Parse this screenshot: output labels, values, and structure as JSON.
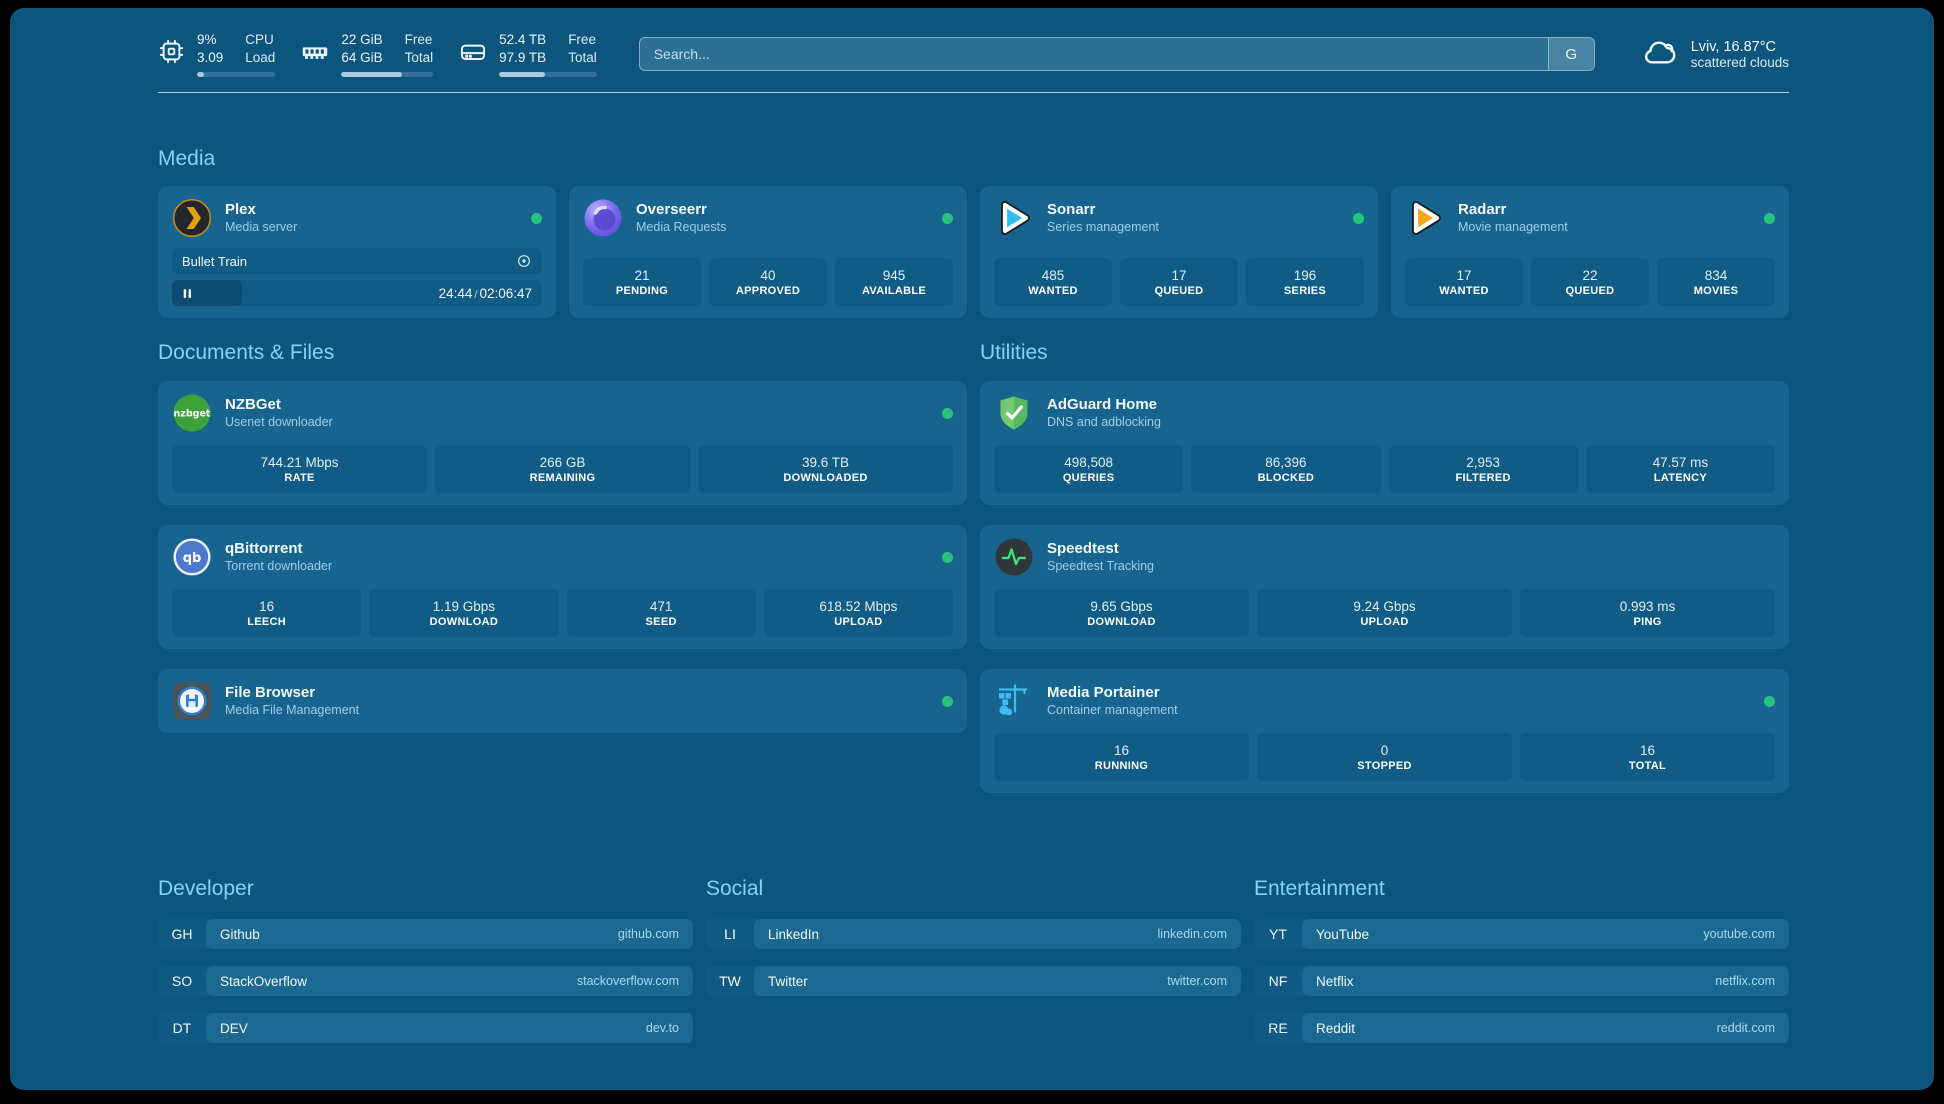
{
  "theme": {
    "background": "#0C567E",
    "card_background": "#17658E",
    "tile_background": "#115C84",
    "section_title_color": "#82D3F5",
    "status_green": "#27C280"
  },
  "header": {
    "system_stats": [
      {
        "icon": "cpu-icon",
        "values": [
          "9%",
          "3.09"
        ],
        "labels": [
          "CPU",
          "Load"
        ],
        "progress_percent": 9
      },
      {
        "icon": "memory-icon",
        "values": [
          "22 GiB",
          "64 GiB"
        ],
        "labels": [
          "Free",
          "Total"
        ],
        "progress_percent": 66
      },
      {
        "icon": "storage-icon",
        "values": [
          "52.4 TB",
          "97.9 TB"
        ],
        "labels": [
          "Free",
          "Total"
        ],
        "progress_percent": 47
      }
    ],
    "search": {
      "placeholder": "Search...",
      "engine_button_label": "G"
    },
    "weather": {
      "icon": "cloud-icon",
      "location_temperature": "Lviv, 16.87°C",
      "description": "scattered clouds"
    }
  },
  "media": {
    "section_title": "Media",
    "plex": {
      "name": "Plex",
      "description": "Media server",
      "icon": "plex-icon",
      "online": true,
      "now_playing": {
        "title": "Bullet Train",
        "elapsed": "24:44",
        "separator": "/",
        "duration": "02:06:47",
        "progress_percent": 19
      }
    },
    "overseerr": {
      "name": "Overseerr",
      "description": "Media Requests",
      "icon": "overseerr-icon",
      "online": true,
      "stats": [
        {
          "value": "21",
          "label": "PENDING"
        },
        {
          "value": "40",
          "label": "APPROVED"
        },
        {
          "value": "945",
          "label": "AVAILABLE"
        }
      ]
    },
    "sonarr": {
      "name": "Sonarr",
      "description": "Series management",
      "icon": "sonarr-icon",
      "online": true,
      "stats": [
        {
          "value": "485",
          "label": "WANTED"
        },
        {
          "value": "17",
          "label": "QUEUED"
        },
        {
          "value": "196",
          "label": "SERIES"
        }
      ]
    },
    "radarr": {
      "name": "Radarr",
      "description": "Movie management",
      "icon": "radarr-icon",
      "online": true,
      "stats": [
        {
          "value": "17",
          "label": "WANTED"
        },
        {
          "value": "22",
          "label": "QUEUED"
        },
        {
          "value": "834",
          "label": "MOVIES"
        }
      ]
    }
  },
  "documents_files": {
    "section_title": "Documents & Files",
    "nzbget": {
      "name": "NZBGet",
      "description": "Usenet downloader",
      "icon": "nzbget-icon",
      "online": true,
      "stats": [
        {
          "value": "744.21 Mbps",
          "label": "RATE"
        },
        {
          "value": "266 GB",
          "label": "REMAINING"
        },
        {
          "value": "39.6 TB",
          "label": "DOWNLOADED"
        }
      ]
    },
    "qbittorrent": {
      "name": "qBittorrent",
      "description": "Torrent downloader",
      "icon": "qbittorrent-icon",
      "online": true,
      "stats": [
        {
          "value": "16",
          "label": "LEECH"
        },
        {
          "value": "1.19 Gbps",
          "label": "DOWNLOAD"
        },
        {
          "value": "471",
          "label": "SEED"
        },
        {
          "value": "618.52 Mbps",
          "label": "UPLOAD"
        }
      ]
    },
    "file_browser": {
      "name": "File Browser",
      "description": "Media File Management",
      "icon": "filebrowser-icon",
      "online": true
    }
  },
  "utilities": {
    "section_title": "Utilities",
    "adguard_home": {
      "name": "AdGuard Home",
      "description": "DNS and adblocking",
      "icon": "adguard-icon",
      "stats": [
        {
          "value": "498,508",
          "label": "QUERIES"
        },
        {
          "value": "86,396",
          "label": "BLOCKED"
        },
        {
          "value": "2,953",
          "label": "FILTERED"
        },
        {
          "value": "47.57 ms",
          "label": "LATENCY"
        }
      ]
    },
    "speedtest": {
      "name": "Speedtest",
      "description": "Speedtest Tracking",
      "icon": "speedtest-icon",
      "stats": [
        {
          "value": "9.65 Gbps",
          "label": "DOWNLOAD"
        },
        {
          "value": "9.24 Gbps",
          "label": "UPLOAD"
        },
        {
          "value": "0.993 ms",
          "label": "PING"
        }
      ]
    },
    "media_portainer": {
      "name": "Media Portainer",
      "description": "Container management",
      "icon": "portainer-icon",
      "online": true,
      "stats": [
        {
          "value": "16",
          "label": "RUNNING"
        },
        {
          "value": "0",
          "label": "STOPPED"
        },
        {
          "value": "16",
          "label": "TOTAL"
        }
      ]
    }
  },
  "bookmarks": [
    {
      "section_title": "Developer",
      "items": [
        {
          "abbr": "GH",
          "name": "Github",
          "url": "github.com"
        },
        {
          "abbr": "SO",
          "name": "StackOverflow",
          "url": "stackoverflow.com"
        },
        {
          "abbr": "DT",
          "name": "DEV",
          "url": "dev.to"
        }
      ]
    },
    {
      "section_title": "Social",
      "items": [
        {
          "abbr": "LI",
          "name": "LinkedIn",
          "url": "linkedin.com"
        },
        {
          "abbr": "TW",
          "name": "Twitter",
          "url": "twitter.com"
        }
      ]
    },
    {
      "section_title": "Entertainment",
      "items": [
        {
          "abbr": "YT",
          "name": "YouTube",
          "url": "youtube.com"
        },
        {
          "abbr": "NF",
          "name": "Netflix",
          "url": "netflix.com"
        },
        {
          "abbr": "RE",
          "name": "Reddit",
          "url": "reddit.com"
        }
      ]
    }
  ]
}
